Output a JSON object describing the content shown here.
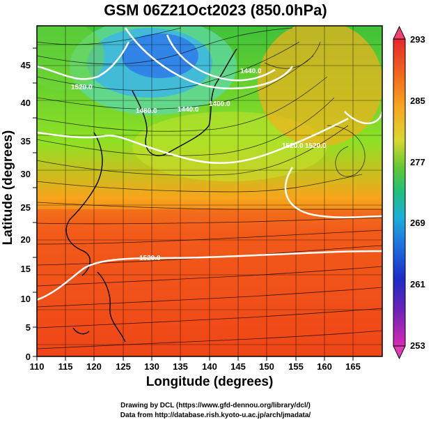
{
  "title": "GSM 06Z21Oct2023 (850.0hPa)",
  "axes": {
    "xlabel": "Longitude (degrees)",
    "ylabel": "Latitude  (degrees)",
    "xticks": [
      "110",
      "115",
      "120",
      "125",
      "130",
      "135",
      "140",
      "145",
      "150",
      "155",
      "160",
      "165"
    ],
    "yticks": [
      "0",
      "5",
      "10",
      "15",
      "20",
      "25",
      "30",
      "35",
      "40",
      "45"
    ]
  },
  "colorbar": {
    "labels": [
      "293",
      "285",
      "277",
      "269",
      "261",
      "253"
    ]
  },
  "contours": {
    "labels": [
      "1520.0",
      "1480.0",
      "1400.0",
      "1440.0",
      "1440.0",
      "1520.0",
      "1520.0",
      "1520.0"
    ]
  },
  "credits": {
    "line1": "Drawing by DCL (https://www.gfd-dennou.org/library/dcl/)",
    "line2": "Data from http://database.rish.kyoto-u.ac.jp/arch/jmadata/"
  },
  "chart_data": {
    "type": "heatmap",
    "title": "GSM 06Z21Oct2023 (850.0hPa)",
    "xlabel": "Longitude (degrees)",
    "ylabel": "Latitude  (degrees)",
    "xlim": [
      110,
      170
    ],
    "ylim": [
      0,
      50
    ],
    "colorbar_range": [
      253,
      293
    ],
    "colorbar_ticks": [
      253,
      261,
      269,
      277,
      285,
      293
    ],
    "grid": true,
    "overlays": [
      "streamlines",
      "geopotential height contours",
      "coastlines"
    ]
  },
  "icons": [
    "colorbar-arrow-up-icon",
    "colorbar-arrow-down-icon"
  ]
}
